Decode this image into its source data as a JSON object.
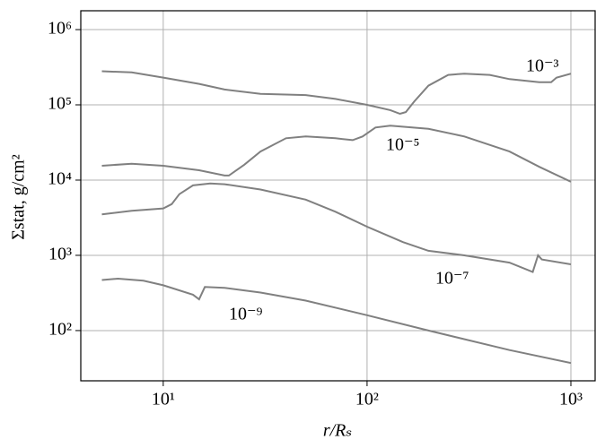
{
  "chart_data": {
    "type": "line",
    "xlabel": "r/Rₛ",
    "ylabel": "Σstat,  g/cm²",
    "xlog": true,
    "ylog": true,
    "grid": true,
    "xlim": [
      3.94,
      1315
    ],
    "ylim": [
      21.5,
      1780000
    ],
    "xticks": [
      {
        "value": 10,
        "label": "10¹"
      },
      {
        "value": 100,
        "label": "10²"
      },
      {
        "value": 1000,
        "label": "10³"
      }
    ],
    "yticks": [
      {
        "value": 100,
        "label": "10²"
      },
      {
        "value": 1000,
        "label": "10³"
      },
      {
        "value": 10000,
        "label": "10⁴"
      },
      {
        "value": 100000,
        "label": "10⁵"
      },
      {
        "value": 1000000,
        "label": "10⁶"
      }
    ],
    "series": [
      {
        "name": "10⁻³",
        "color": "#808080",
        "x": [
          5,
          7,
          10,
          15,
          20,
          30,
          50,
          70,
          100,
          130,
          145,
          155,
          170,
          200,
          250,
          300,
          400,
          500,
          700,
          800,
          850,
          1000
        ],
        "values": [
          280000,
          270000,
          230000,
          190000,
          160000,
          140000,
          135000,
          120000,
          100000,
          85000,
          76000,
          80000,
          110000,
          180000,
          250000,
          260000,
          250000,
          220000,
          200000,
          200000,
          230000,
          260000
        ]
      },
      {
        "name": "10⁻⁵",
        "color": "#808080",
        "x": [
          5,
          7,
          10,
          15,
          20,
          21,
          25,
          30,
          40,
          50,
          70,
          85,
          95,
          110,
          130,
          200,
          300,
          500,
          700,
          1000
        ],
        "values": [
          15500,
          16500,
          15500,
          13500,
          11500,
          11500,
          16000,
          24000,
          36000,
          38000,
          36000,
          34000,
          38000,
          50000,
          53000,
          48000,
          38000,
          24000,
          15000,
          9500
        ]
      },
      {
        "name": "10⁻⁷",
        "color": "#808080",
        "x": [
          5,
          7,
          10,
          11,
          12,
          14,
          17,
          20,
          30,
          50,
          70,
          100,
          150,
          200,
          300,
          500,
          650,
          690,
          720,
          1000
        ],
        "values": [
          3500,
          3900,
          4200,
          4800,
          6500,
          8500,
          9000,
          8800,
          7500,
          5500,
          3800,
          2400,
          1500,
          1150,
          1000,
          800,
          600,
          1000,
          880,
          760
        ]
      },
      {
        "name": "10⁻⁹",
        "color": "#808080",
        "x": [
          5,
          6,
          8,
          10,
          14,
          15,
          16,
          20,
          30,
          50,
          100,
          200,
          500,
          1000
        ],
        "values": [
          470,
          490,
          460,
          400,
          300,
          260,
          380,
          370,
          320,
          250,
          160,
          100,
          55,
          37
        ]
      }
    ]
  }
}
